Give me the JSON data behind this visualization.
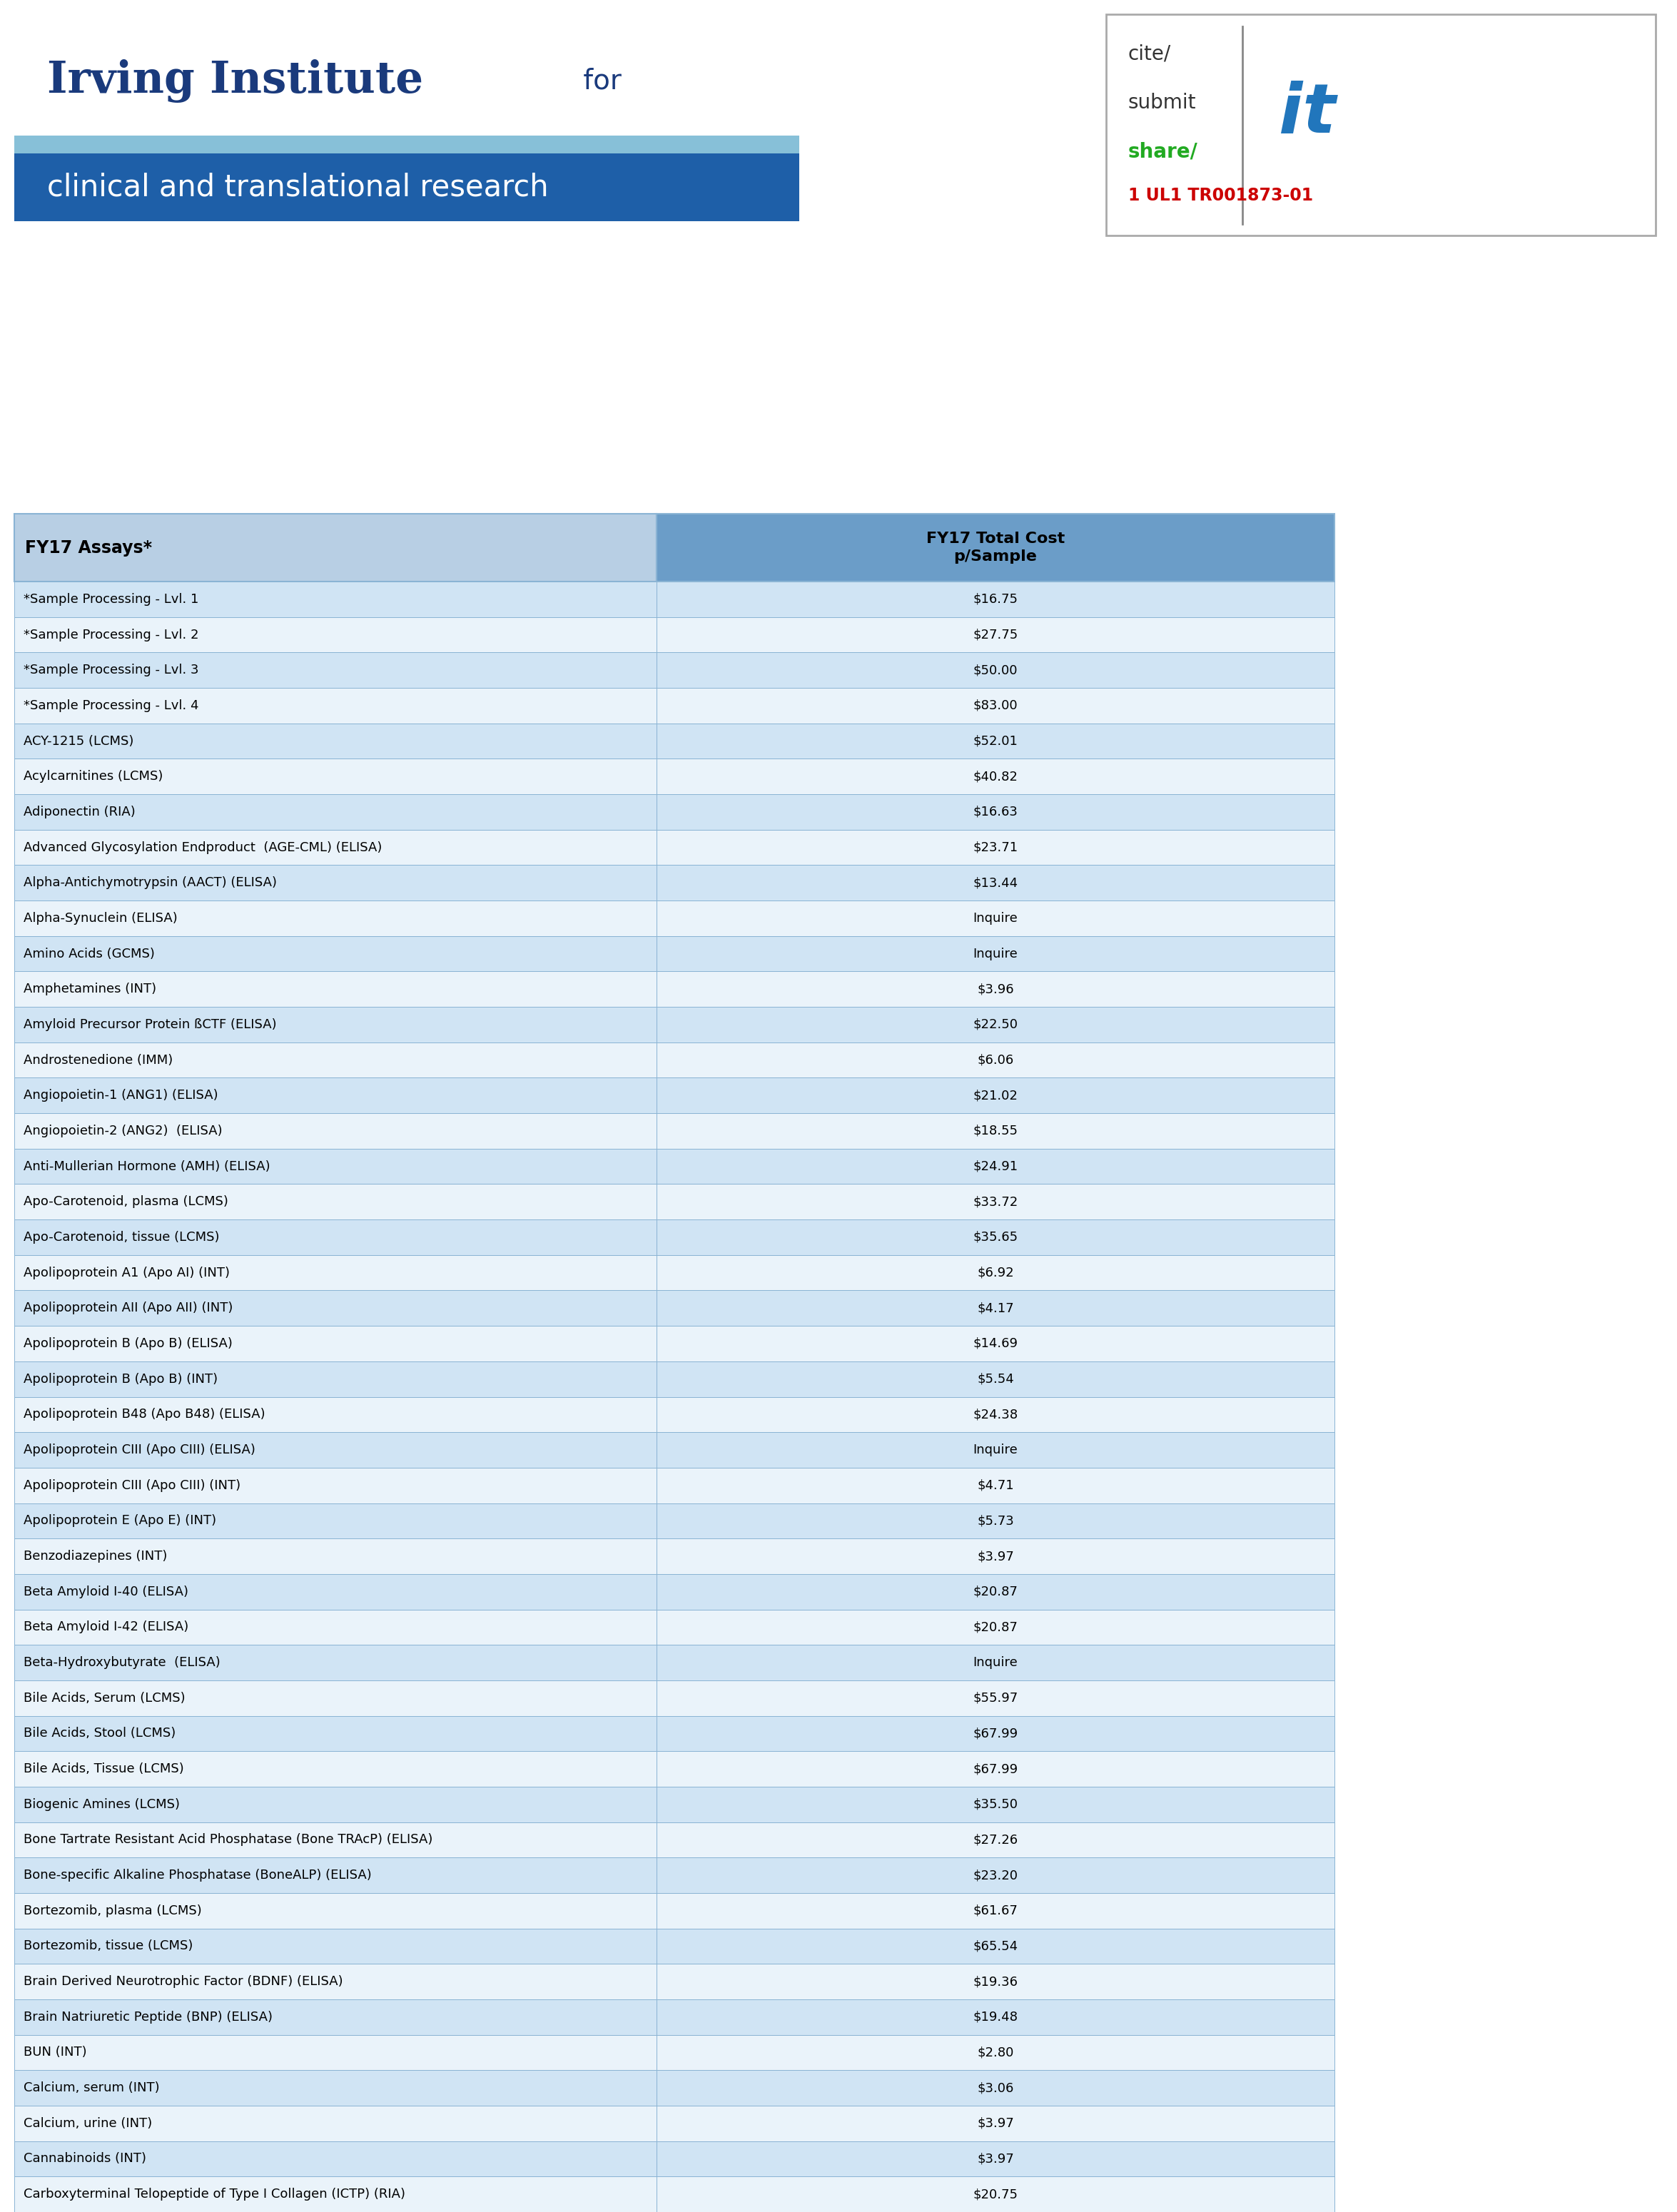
{
  "title_line1": "Irving Institute",
  "title_line1b": " for",
  "title_line2": "clinical and translational research",
  "header_col1": "FY17 Assays*",
  "header_col2": "FY17 Total Cost\np/Sample",
  "rows": [
    [
      "*Sample Processing - Lvl. 1",
      "$16.75"
    ],
    [
      "*Sample Processing - Lvl. 2",
      "$27.75"
    ],
    [
      "*Sample Processing - Lvl. 3",
      "$50.00"
    ],
    [
      "*Sample Processing - Lvl. 4",
      "$83.00"
    ],
    [
      "ACY-1215 (LCMS)",
      "$52.01"
    ],
    [
      "Acylcarnitines (LCMS)",
      "$40.82"
    ],
    [
      "Adiponectin (RIA)",
      "$16.63"
    ],
    [
      "Advanced Glycosylation Endproduct  (AGE-CML) (ELISA)",
      "$23.71"
    ],
    [
      "Alpha-Antichymotrypsin (AACT) (ELISA)",
      "$13.44"
    ],
    [
      "Alpha-Synuclein (ELISA)",
      "Inquire"
    ],
    [
      "Amino Acids (GCMS)",
      "Inquire"
    ],
    [
      "Amphetamines (INT)",
      "$3.96"
    ],
    [
      "Amyloid Precursor Protein ßCTF (ELISA)",
      "$22.50"
    ],
    [
      "Androstenedione (IMM)",
      "$6.06"
    ],
    [
      "Angiopoietin-1 (ANG1) (ELISA)",
      "$21.02"
    ],
    [
      "Angiopoietin-2 (ANG2)  (ELISA)",
      "$18.55"
    ],
    [
      "Anti-Mullerian Hormone (AMH) (ELISA)",
      "$24.91"
    ],
    [
      "Apo-Carotenoid, plasma (LCMS)",
      "$33.72"
    ],
    [
      "Apo-Carotenoid, tissue (LCMS)",
      "$35.65"
    ],
    [
      "Apolipoprotein A1 (Apo AI) (INT)",
      "$6.92"
    ],
    [
      "Apolipoprotein AII (Apo AII) (INT)",
      "$4.17"
    ],
    [
      "Apolipoprotein B (Apo B) (ELISA)",
      "$14.69"
    ],
    [
      "Apolipoprotein B (Apo B) (INT)",
      "$5.54"
    ],
    [
      "Apolipoprotein B48 (Apo B48) (ELISA)",
      "$24.38"
    ],
    [
      "Apolipoprotein CIII (Apo CIII) (ELISA)",
      "Inquire"
    ],
    [
      "Apolipoprotein CIII (Apo CIII) (INT)",
      "$4.71"
    ],
    [
      "Apolipoprotein E (Apo E) (INT)",
      "$5.73"
    ],
    [
      "Benzodiazepines (INT)",
      "$3.97"
    ],
    [
      "Beta Amyloid I-40 (ELISA)",
      "$20.87"
    ],
    [
      "Beta Amyloid I-42 (ELISA)",
      "$20.87"
    ],
    [
      "Beta-Hydroxybutyrate  (ELISA)",
      "Inquire"
    ],
    [
      "Bile Acids, Serum (LCMS)",
      "$55.97"
    ],
    [
      "Bile Acids, Stool (LCMS)",
      "$67.99"
    ],
    [
      "Bile Acids, Tissue (LCMS)",
      "$67.99"
    ],
    [
      "Biogenic Amines (LCMS)",
      "$35.50"
    ],
    [
      "Bone Tartrate Resistant Acid Phosphatase (Bone TRAcP) (ELISA)",
      "$27.26"
    ],
    [
      "Bone-specific Alkaline Phosphatase (BoneALP) (ELISA)",
      "$23.20"
    ],
    [
      "Bortezomib, plasma (LCMS)",
      "$61.67"
    ],
    [
      "Bortezomib, tissue (LCMS)",
      "$65.54"
    ],
    [
      "Brain Derived Neurotrophic Factor (BDNF) (ELISA)",
      "$19.36"
    ],
    [
      "Brain Natriuretic Peptide (BNP) (ELISA)",
      "$19.48"
    ],
    [
      "BUN (INT)",
      "$2.80"
    ],
    [
      "Calcium, serum (INT)",
      "$3.06"
    ],
    [
      "Calcium, urine (INT)",
      "$3.97"
    ],
    [
      "Cannabinoids (INT)",
      "$3.97"
    ],
    [
      "Carboxyterminal Telopeptide of Type I Collagen (ICTP) (RIA)",
      "$20.75"
    ]
  ],
  "outer_bg": "#000000",
  "page_bg": "#ffffff",
  "logo_white_bg": "#ffffff",
  "logo_light_blue": "#87c0d8",
  "logo_dark_blue": "#1e5fa8",
  "logo_text_color": "#1a3a7c",
  "logo_subtitle_text": "#ffffff",
  "header_bg": "#b8cfe4",
  "col2_header_bg": "#6b9dc8",
  "row_bg_even": "#d0e4f4",
  "row_bg_odd": "#eaf3fa",
  "table_border_color": "#8ab4d4",
  "text_color": "#000000"
}
